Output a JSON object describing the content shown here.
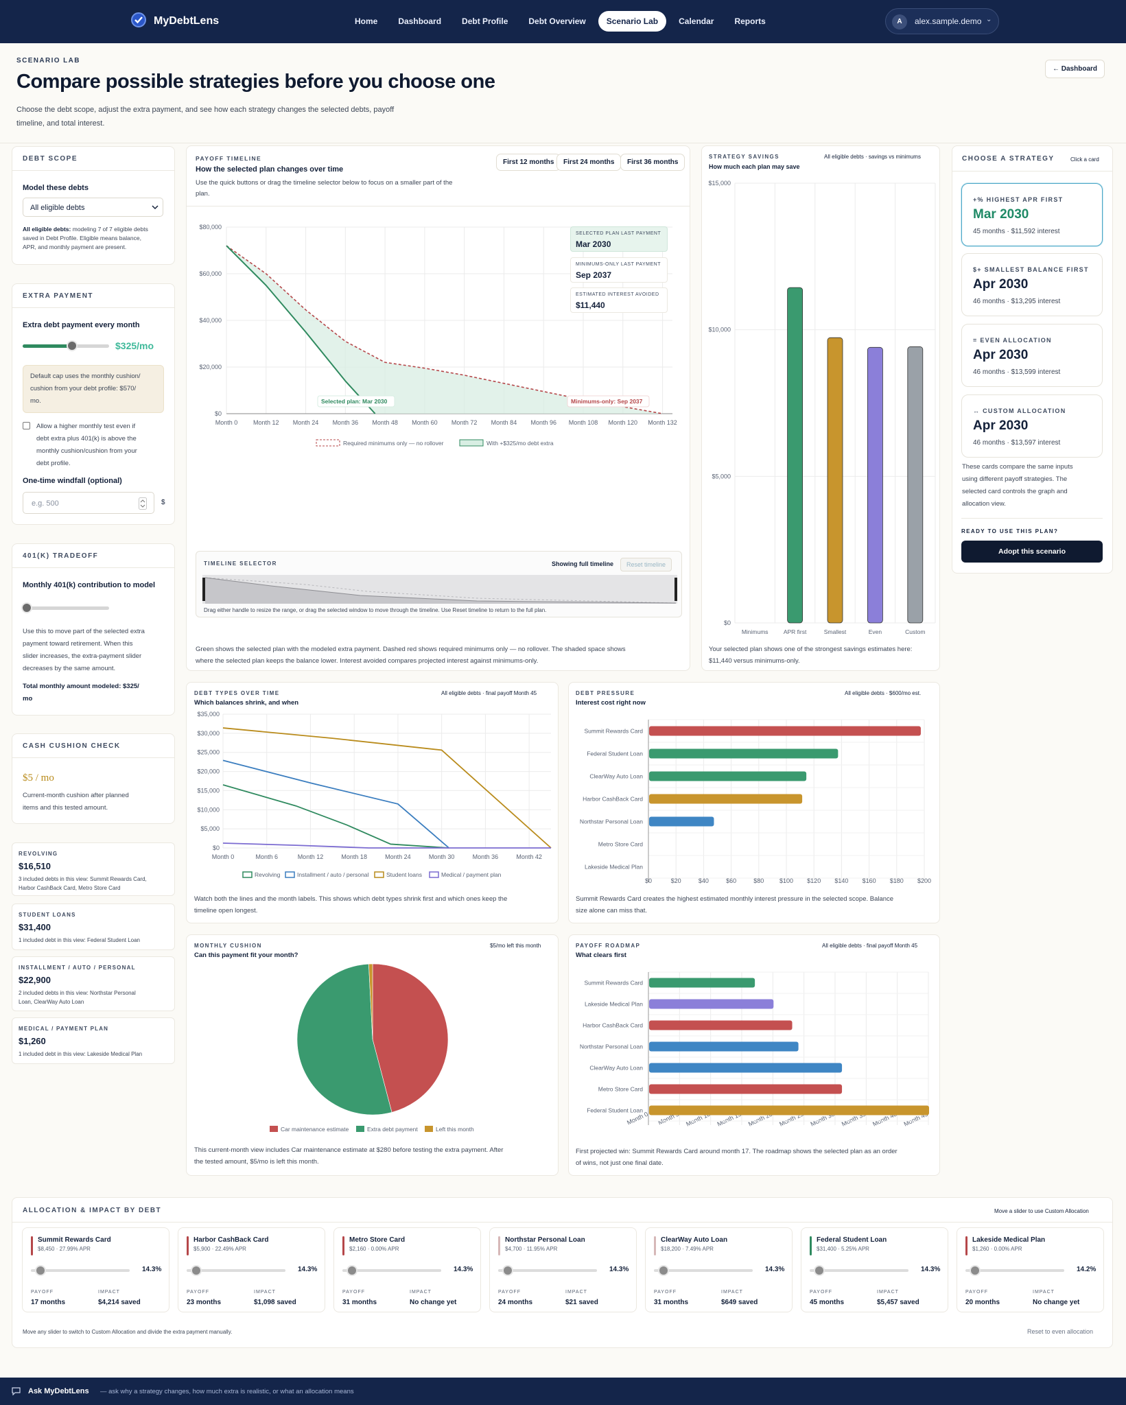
{
  "nav": {
    "brand": "MyDebtLens",
    "links": [
      "Home",
      "Dashboard",
      "Debt Profile",
      "Debt Overview",
      "Scenario Lab",
      "Calendar",
      "Reports"
    ],
    "active": "Scenario Lab",
    "user_initial": "A",
    "user_name": "alex.sample.demo",
    "user_chevron": "⌄"
  },
  "header": {
    "eyebrow": "SCENARIO LAB",
    "title": "Compare possible strategies before you choose one",
    "desc_line1": "Choose the debt scope, adjust the extra payment, and see how each strategy changes the selected debts, payoff",
    "desc_line2": "timeline, and total interest.",
    "back_button": "← Dashboard"
  },
  "scope": {
    "head": "DEBT SCOPE",
    "label": "Model these debts",
    "select_value": "All eligible debts",
    "note_bold": "All eligible debts:",
    "note_line1": " modeling 7 of 7 eligible debts",
    "note_line2": "saved in Debt Profile. Eligible means balance,",
    "note_line3": "APR, and monthly payment are present."
  },
  "extra": {
    "head": "EXTRA PAYMENT",
    "label": "Extra debt payment every month",
    "value": "$325/mo",
    "slider_fraction": 0.57,
    "cap_line1": "Default cap uses the monthly cushion/",
    "cap_line2": "cushion from your debt profile: $570/",
    "cap_line3": "mo.",
    "check_line1": "Allow a higher monthly test even if",
    "check_line2": "debt extra plus 401(k) is above the",
    "check_line3": "monthly cushion/cushion from your",
    "check_line4": "debt profile.",
    "windfall_label": "One-time windfall (optional)",
    "windfall_placeholder": "e.g. 500",
    "windfall_unit": "$"
  },
  "k401": {
    "head": "401(K) TRADEOFF",
    "label": "Monthly 401(k) contribution to model",
    "slider_fraction": 0.0,
    "desc1": "Use this to move part of the selected extra",
    "desc2": "payment toward retirement. When this",
    "desc3": "slider increases, the extra-payment slider",
    "desc4": "decreases by the same amount.",
    "total1": "Total monthly amount modeled: $325/",
    "total2": "mo"
  },
  "cushion": {
    "head": "CASH CUSHION CHECK",
    "value": "$5 / mo",
    "desc1": "Current-month cushion after planned",
    "desc2": "items and this tested amount."
  },
  "categories": [
    {
      "key": "REVOLVING",
      "value": "$16,510",
      "d1": "3 included debts in this view: Summit Rewards Card,",
      "d2": "Harbor CashBack Card, Metro Store Card"
    },
    {
      "key": "STUDENT LOANS",
      "value": "$31,400",
      "d1": "1 included debt in this view: Federal Student Loan",
      "d2": ""
    },
    {
      "key": "INSTALLMENT / AUTO / PERSONAL",
      "value": "$22,900",
      "d1": "2 included debts in this view: Northstar Personal",
      "d2": "Loan, ClearWay Auto Loan"
    },
    {
      "key": "MEDICAL / PAYMENT PLAN",
      "value": "$1,260",
      "d1": "1 included debt in this view: Lakeside Medical Plan",
      "d2": ""
    }
  ],
  "timeline": {
    "eyebrow": "PAYOFF TIMELINE",
    "title": "How the selected plan changes over time",
    "sub1": "Use the quick buttons or drag the timeline selector below to focus on a smaller part of the",
    "sub2": "plan.",
    "buttons": [
      "First 12 months",
      "First 24 months",
      "First 36 months"
    ],
    "stat1_label": "SELECTED PLAN LAST PAYMENT",
    "stat1_value": "Mar 2030",
    "stat2_label": "MINIMUMS-ONLY LAST PAYMENT",
    "stat2_value": "Sep 2037",
    "stat3_label": "ESTIMATED INTEREST AVOIDED",
    "stat3_value": "$11,440",
    "selected_label": "Selected plan: Mar 2030",
    "minimums_label": "Minimums-only: Sep 2037",
    "legend_min": "Required minimums only — no rollover",
    "legend_sel": "With +$325/mo debt extra",
    "selector_head": "TIMELINE SELECTOR",
    "selector_showing": "Showing full timeline",
    "selector_reset": "Reset timeline",
    "selector_note": "Drag either handle to resize the range, or drag the selected window to move through the timeline. Use Reset timeline to return to the full plan.",
    "foot1": "Green shows the selected plan with the modeled extra payment. Dashed red shows required minimums only — no rollover. The shaded space shows",
    "foot2": "where the selected plan keeps the balance lower. Interest avoided compares projected interest against minimums-only."
  },
  "savings": {
    "eyebrow": "STRATEGY SAVINGS",
    "scope": "All eligible debts · savings vs minimums",
    "title": "How much each plan may save",
    "foot1": "Your selected plan shows one of the strongest savings estimates here:",
    "foot2": "$11,440 versus minimums-only."
  },
  "strategy": {
    "head": "CHOOSE A STRATEGY",
    "hint": "Click a card",
    "cards": [
      {
        "tag": "+% HIGHEST APR FIRST",
        "date": "Mar 2030",
        "sub": "45 months · $11,592 interest"
      },
      {
        "tag": "$+ SMALLEST BALANCE FIRST",
        "date": "Apr 2030",
        "sub": "46 months · $13,295 interest"
      },
      {
        "tag": "= EVEN ALLOCATION",
        "date": "Apr 2030",
        "sub": "46 months · $13,599 interest"
      },
      {
        "tag": "↔ CUSTOM ALLOCATION",
        "date": "Apr 2030",
        "sub": "46 months · $13,597 interest"
      }
    ],
    "note1": "These cards compare the same inputs",
    "note2": "using different payoff strategies. The",
    "note3": "selected card controls the graph and",
    "note4": "allocation view.",
    "ready": "READY TO USE THIS PLAN?",
    "adopt": "Adopt this scenario"
  },
  "debt_types": {
    "eyebrow": "DEBT TYPES OVER TIME",
    "scope": "All eligible debts · final payoff Month 45",
    "title": "Which balances shrink, and when",
    "foot1": "Watch both the lines and the month labels. This shows which debt types shrink first and which ones keep the",
    "foot2": "timeline open longest."
  },
  "pressure": {
    "eyebrow": "DEBT PRESSURE",
    "scope": "All eligible debts · $600/mo est.",
    "title": "Interest cost right now",
    "foot1": "Summit Rewards Card creates the highest estimated monthly interest pressure in the selected scope. Balance",
    "foot2": "size alone can miss that."
  },
  "monthly": {
    "eyebrow": "MONTHLY CUSHION",
    "scope": "$5/mo left this month",
    "title": "Can this payment fit your month?",
    "foot1": "This current-month view includes Car maintenance estimate at $280 before testing the extra payment. After",
    "foot2": "the tested amount, $5/mo is left this month."
  },
  "roadmap": {
    "eyebrow": "PAYOFF ROADMAP",
    "scope": "All eligible debts · final payoff Month 45",
    "title": "What clears first",
    "foot1": "First projected win: Summit Rewards Card around month 17. The roadmap shows the selected plan as an order",
    "foot2": "of wins, not just one final date."
  },
  "allocation": {
    "head": "ALLOCATION & IMPACT BY DEBT",
    "hint": "Move a slider to use Custom Allocation",
    "payoff_label": "PAYOFF",
    "impact_label": "IMPACT",
    "debts": [
      {
        "name": "Summit Rewards Card",
        "sub": "$8,450 · 27.99% APR",
        "pct": "14.3%",
        "payoff": "17 months",
        "impact": "$4,214 saved",
        "color": "#b5474a"
      },
      {
        "name": "Harbor CashBack Card",
        "sub": "$5,900 · 22.49% APR",
        "pct": "14.3%",
        "payoff": "23 months",
        "impact": "$1,098 saved",
        "color": "#b5474a"
      },
      {
        "name": "Metro Store Card",
        "sub": "$2,160 · 0.00% APR",
        "pct": "14.3%",
        "payoff": "31 months",
        "impact": "No change yet",
        "color": "#b5474a"
      },
      {
        "name": "Northstar Personal Loan",
        "sub": "$4,700 · 11.95% APR",
        "pct": "14.3%",
        "payoff": "24 months",
        "impact": "$21 saved",
        "color": "#d6b8b8"
      },
      {
        "name": "ClearWay Auto Loan",
        "sub": "$18,200 · 7.49% APR",
        "pct": "14.3%",
        "payoff": "31 months",
        "impact": "$649 saved",
        "color": "#d6b8b8"
      },
      {
        "name": "Federal Student Loan",
        "sub": "$31,400 · 5.25% APR",
        "pct": "14.3%",
        "payoff": "45 months",
        "impact": "$5,457 saved",
        "color": "#2f8a5f"
      },
      {
        "name": "Lakeside Medical Plan",
        "sub": "$1,260 · 0.00% APR",
        "pct": "14.2%",
        "payoff": "20 months",
        "impact": "No change yet",
        "color": "#b5474a"
      }
    ],
    "foot": "Move any slider to switch to Custom Allocation and divide the extra payment manually.",
    "reset": "Reset to even allocation"
  },
  "footer": {
    "ask": "Ask MyDebtLens",
    "hint": "— ask why a strategy changes, how much extra is realistic, or what an allocation means"
  },
  "chart_data": [
    {
      "type": "area",
      "title": "How the selected plan changes over time",
      "x_ticks": [
        "Month 0",
        "Month 12",
        "Month 24",
        "Month 36",
        "Month 48",
        "Month 60",
        "Month 72",
        "Month 84",
        "Month 96",
        "Month 108",
        "Month 120",
        "Month 132"
      ],
      "y_ticks": [
        "$0",
        "$20,000",
        "$40,000",
        "$60,000",
        "$80,000"
      ],
      "ylim": [
        0,
        80000
      ],
      "xlim": [
        0,
        135
      ],
      "series": [
        {
          "name": "Required minimums only — no rollover",
          "x": [
            0,
            12,
            24,
            36,
            48,
            60,
            72,
            84,
            96,
            108,
            120,
            132
          ],
          "y": [
            72000,
            60000,
            44500,
            31000,
            22000,
            19500,
            16500,
            13000,
            9500,
            6000,
            3000,
            0
          ],
          "color": "#b5474a",
          "style": "dashed"
        },
        {
          "name": "With +$325/mo debt extra",
          "x": [
            0,
            12,
            24,
            36,
            45
          ],
          "y": [
            72000,
            55000,
            35000,
            14000,
            0
          ],
          "color": "#2f8a5f",
          "style": "solid"
        }
      ],
      "grid": true,
      "legend": "bottom"
    },
    {
      "type": "bar",
      "title": "How much each plan may save",
      "categories": [
        "Minimums",
        "APR first",
        "Smallest",
        "Even",
        "Custom"
      ],
      "values": [
        0,
        11440,
        9730,
        9400,
        9420
      ],
      "colors": [
        "#cccccc",
        "#3a9a6f",
        "#c8952d",
        "#8b7fd9",
        "#9aa1a8"
      ],
      "y_ticks": [
        "$0",
        "$5,000",
        "$10,000",
        "$15,000"
      ],
      "ylim": [
        0,
        15000
      ],
      "grid": true
    },
    {
      "type": "line",
      "title": "Which balances shrink, and when",
      "x_ticks": [
        "Month 0",
        "Month 6",
        "Month 12",
        "Month 18",
        "Month 24",
        "Month 30",
        "Month 36",
        "Month 42"
      ],
      "y_ticks": [
        "$0",
        "$5,000",
        "$10,000",
        "$15,000",
        "$20,000",
        "$25,000",
        "$30,000",
        "$35,000"
      ],
      "ylim": [
        0,
        35000
      ],
      "xlim": [
        0,
        45
      ],
      "series": [
        {
          "name": "Revolving",
          "x": [
            0,
            10,
            17,
            23,
            31
          ],
          "y": [
            16510,
            11000,
            6000,
            1000,
            0
          ],
          "color": "#2f8a5f"
        },
        {
          "name": "Installment / auto / personal",
          "x": [
            0,
            12,
            24,
            31
          ],
          "y": [
            22900,
            17000,
            11500,
            0
          ],
          "color": "#3a7dbf"
        },
        {
          "name": "Student loans",
          "x": [
            0,
            15,
            30,
            45
          ],
          "y": [
            31400,
            28700,
            25600,
            0
          ],
          "color": "#b98b1b"
        },
        {
          "name": "Medical / payment plan",
          "x": [
            0,
            10,
            20,
            45
          ],
          "y": [
            1260,
            700,
            0,
            0
          ],
          "color": "#7b6bd1"
        }
      ],
      "grid": true,
      "legend": "bottom"
    },
    {
      "type": "bar",
      "orientation": "horizontal",
      "title": "Interest cost right now",
      "categories": [
        "Summit Rewards Card",
        "Federal Student Loan",
        "ClearWay Auto Loan",
        "Harbor CashBack Card",
        "Northstar Personal Loan",
        "Metro Store Card",
        "Lakeside Medical Plan"
      ],
      "values": [
        197,
        137,
        114,
        111,
        47,
        0,
        0
      ],
      "colors": [
        "#c45050",
        "#3a9a6f",
        "#3a9a6f",
        "#c8952d",
        "#3f86c4",
        "#cccccc",
        "#cccccc"
      ],
      "x_ticks": [
        "$0",
        "$20",
        "$40",
        "$60",
        "$80",
        "$100",
        "$120",
        "$140",
        "$160",
        "$180",
        "$200"
      ],
      "xlim": [
        0,
        200
      ],
      "grid": true
    },
    {
      "type": "pie",
      "title": "Can this payment fit your month?",
      "categories": [
        "Car maintenance estimate",
        "Extra debt payment",
        "Left this month"
      ],
      "values": [
        280,
        325,
        5
      ],
      "colors": [
        "#c45050",
        "#3a9a6f",
        "#c8952d"
      ],
      "legend": "bottom"
    },
    {
      "type": "bar",
      "orientation": "horizontal",
      "title": "What clears first",
      "categories": [
        "Summit Rewards Card",
        "Lakeside Medical Plan",
        "Harbor CashBack Card",
        "Northstar Personal Loan",
        "ClearWay Auto Loan",
        "Metro Store Card",
        "Federal Student Loan"
      ],
      "values": [
        17,
        20,
        23,
        24,
        31,
        31,
        45
      ],
      "colors": [
        "#3a9a6f",
        "#8b7fd9",
        "#c45050",
        "#3f86c4",
        "#3f86c4",
        "#c45050",
        "#c8952d"
      ],
      "x_ticks": [
        "Month 0",
        "Month 5",
        "Month 10",
        "Month 15",
        "Month 20",
        "Month 25",
        "Month 30",
        "Month 35",
        "Month 40",
        "Month 45"
      ],
      "xlim": [
        0,
        45
      ],
      "grid": true
    }
  ]
}
